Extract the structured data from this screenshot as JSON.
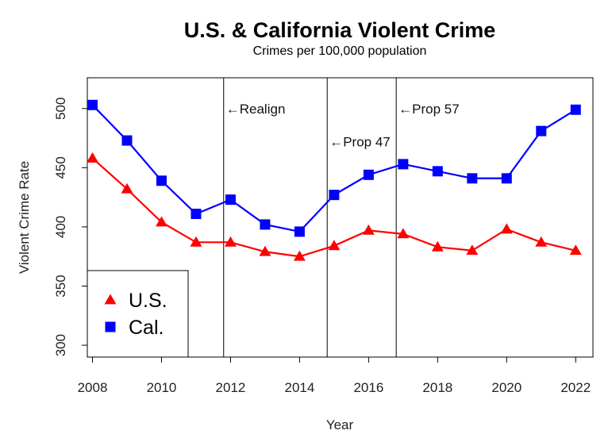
{
  "chart_data": {
    "type": "line",
    "title": "U.S. & California Violent Crime",
    "subtitle": "Crimes per 100,000 population",
    "xlabel": "Year",
    "ylabel": "Violent Crime Rate",
    "xlim": [
      2007.85,
      2022.5
    ],
    "ylim": [
      290,
      526
    ],
    "x_ticks": [
      "2008",
      "2010",
      "2012",
      "2014",
      "2016",
      "2018",
      "2020",
      "2022"
    ],
    "y_ticks": [
      "300",
      "350",
      "400",
      "450",
      "500"
    ],
    "x": [
      2008,
      2009,
      2010,
      2011,
      2012,
      2013,
      2014,
      2015,
      2016,
      2017,
      2018,
      2019,
      2020,
      2021,
      2022
    ],
    "series": [
      {
        "name": "U.S.",
        "color": "#ff0000",
        "marker": "triangle",
        "values": [
          458,
          432,
          404,
          387,
          387,
          379,
          375,
          384,
          397,
          394,
          383,
          380,
          398,
          387,
          380
        ]
      },
      {
        "name": "Cal.",
        "color": "#0000ff",
        "marker": "square",
        "values": [
          503,
          473,
          439,
          411,
          423,
          402,
          396,
          427,
          444,
          453,
          447,
          441,
          441,
          481,
          499
        ]
      }
    ],
    "vlines": [
      {
        "x": 2011.8,
        "label": "←Realign",
        "label_y": 500
      },
      {
        "x": 2014.8,
        "label": "←Prop 47",
        "label_y": 472
      },
      {
        "x": 2016.8,
        "label": "←Prop 57",
        "label_y": 500
      }
    ],
    "legend_position": "bottom-left",
    "grid": false
  }
}
